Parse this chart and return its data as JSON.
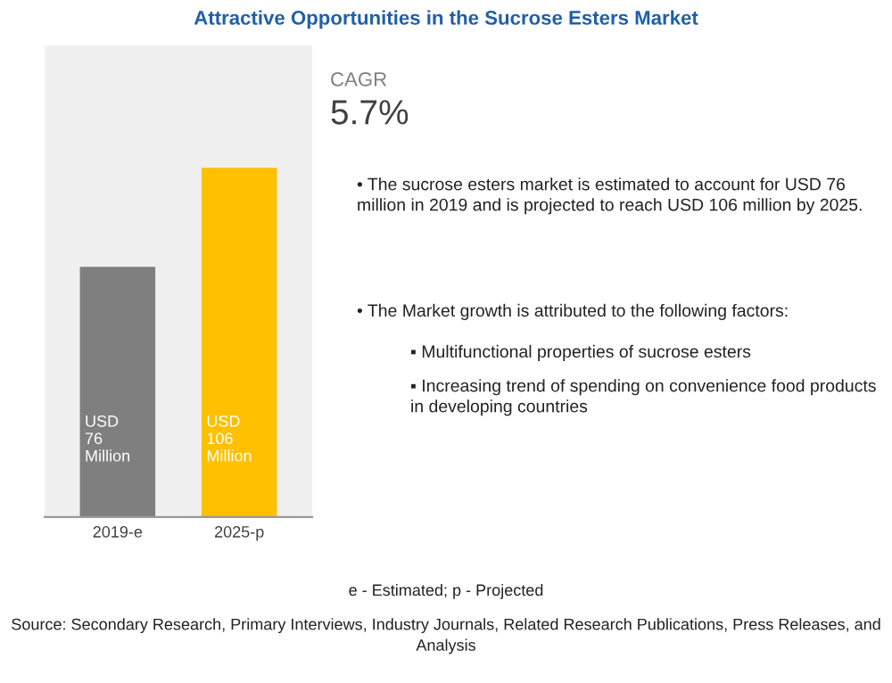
{
  "chart_data": {
    "type": "bar",
    "title": "Attractive Opportunities in the Sucrose Esters Market",
    "categories": [
      "2019-e",
      "2025-p"
    ],
    "values": [
      76,
      106
    ],
    "colors": [
      "#7f7f7f",
      "#ffc000"
    ],
    "value_labels": [
      "USD\n76\nMillion",
      "USD\n106\nMillion"
    ],
    "tick_labels": "x",
    "annotations": [
      "CAGR",
      "5.7%",
      "• The sucrose esters market is estimated to account for USD 76 million in 2019 and is projected to reach USD 106 million by 2025.",
      "• The Market growth is attributed to the following factors:",
      "▪ Multifunctional properties of sucrose esters",
      "▪ Increasing trend of spending on convenience food products in developing countries",
      "e - Estimated; p - Projected",
      "Source: Secondary Research, Primary Interviews, Industry Journals, Related Research Publications, Press Releases, and Analysis"
    ]
  }
}
